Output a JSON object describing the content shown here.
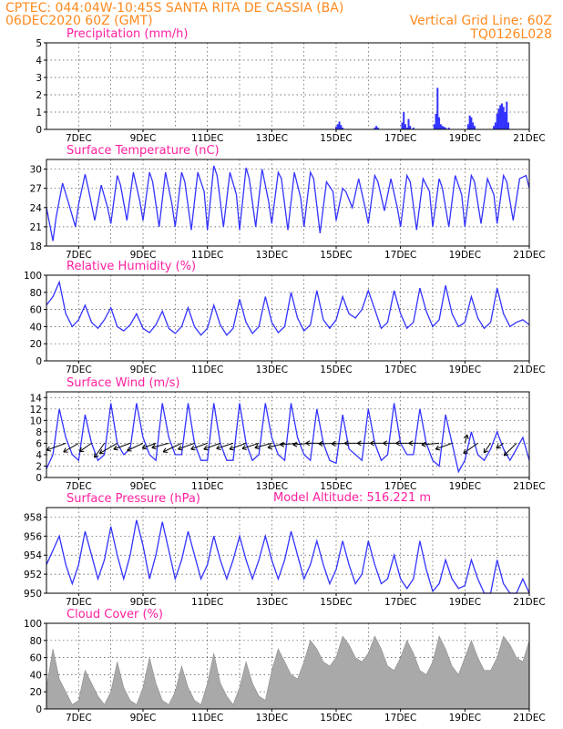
{
  "header": {
    "line1_left": "CPTEC:  044:04W-10:45S  SANTA RITA DE CASSIA (BA)",
    "line2_left": "06DEC2020 60Z (GMT)",
    "line2_right": "Vertical Grid Line: 60Z",
    "line3_right": "TQ0126L028",
    "model_altitude": "Model Altitude: 516.221 m"
  },
  "x_ticks": [
    "7DEC",
    "9DEC",
    "11DEC",
    "13DEC",
    "15DEC",
    "17DEC",
    "19DEC",
    "21DEC"
  ],
  "colors": {
    "line": "#3333ff",
    "bars": "#3333ff",
    "cloud": "#a9a9a9",
    "header": "#ff8a1f",
    "title": "#ff1fa0"
  },
  "chart_data": [
    {
      "type": "bar",
      "title": "Precipitation (mm/h)",
      "x_unit": "days since 06DEC 06Z",
      "ylim": [
        0,
        5
      ],
      "yticks": [
        0,
        1,
        2,
        3,
        4,
        5
      ],
      "grid": true,
      "x": [
        9.0,
        9.05,
        9.1,
        9.15,
        9.2,
        10.2,
        10.25,
        10.3,
        11.05,
        11.1,
        11.15,
        11.2,
        11.25,
        11.3,
        11.4,
        12.05,
        12.1,
        12.15,
        12.2,
        12.25,
        12.3,
        12.35,
        12.4,
        12.5,
        13.1,
        13.15,
        13.2,
        13.25,
        13.3,
        13.9,
        13.95,
        14.0,
        14.05,
        14.1,
        14.15,
        14.2,
        14.25,
        14.3,
        14.35
      ],
      "values": [
        0.15,
        0.3,
        0.45,
        0.25,
        0.1,
        0.1,
        0.2,
        0.1,
        0.4,
        1.0,
        0.3,
        0.1,
        0.6,
        0.2,
        0.1,
        0.3,
        0.9,
        2.4,
        0.7,
        0.3,
        0.2,
        0.15,
        0.1,
        0.1,
        0.3,
        0.8,
        0.7,
        0.4,
        0.2,
        0.2,
        0.4,
        0.9,
        1.2,
        1.4,
        1.5,
        1.3,
        1.0,
        1.6,
        0.4
      ]
    },
    {
      "type": "line",
      "title": "Surface Temperature (nC)",
      "x_unit": "days since 06DEC 06Z",
      "ylim": [
        18,
        31.5
      ],
      "yticks": [
        18,
        21,
        24,
        27,
        30
      ],
      "grid": true,
      "x": [
        0.0,
        0.2,
        0.3,
        0.5,
        0.7,
        0.9,
        1.0,
        1.2,
        1.3,
        1.5,
        1.7,
        1.9,
        2.0,
        2.2,
        2.3,
        2.5,
        2.7,
        2.9,
        3.0,
        3.2,
        3.3,
        3.5,
        3.7,
        3.9,
        4.0,
        4.2,
        4.3,
        4.5,
        4.7,
        4.9,
        5.0,
        5.2,
        5.3,
        5.5,
        5.7,
        5.9,
        6.0,
        6.2,
        6.3,
        6.5,
        6.7,
        6.9,
        7.0,
        7.2,
        7.3,
        7.5,
        7.7,
        7.9,
        8.0,
        8.2,
        8.3,
        8.5,
        8.7,
        8.9,
        9.0,
        9.2,
        9.3,
        9.5,
        9.7,
        9.9,
        10.0,
        10.2,
        10.3,
        10.5,
        10.7,
        10.9,
        11.0,
        11.2,
        11.3,
        11.5,
        11.7,
        11.9,
        12.0,
        12.2,
        12.3,
        12.5,
        12.7,
        12.9,
        13.0,
        13.2,
        13.3,
        13.5,
        13.7,
        13.9,
        14.0,
        14.2,
        14.3,
        14.5,
        14.7,
        14.9,
        15.0
      ],
      "values": [
        24.0,
        18.8,
        22.5,
        27.8,
        24.5,
        21.0,
        24.5,
        29.2,
        27.0,
        22.0,
        27.5,
        24.0,
        21.5,
        29.0,
        27.5,
        22.0,
        29.5,
        25.0,
        22.0,
        29.5,
        28.0,
        21.0,
        29.5,
        24.5,
        21.0,
        29.5,
        28.0,
        20.5,
        29.5,
        26.5,
        20.5,
        30.5,
        29.0,
        21.0,
        29.5,
        26.0,
        20.5,
        30.2,
        28.5,
        21.0,
        30.0,
        25.0,
        21.5,
        29.5,
        28.5,
        20.5,
        29.5,
        25.5,
        21.0,
        29.5,
        28.5,
        20.0,
        28.0,
        26.5,
        22.0,
        27.0,
        26.5,
        24.0,
        28.5,
        24.0,
        21.5,
        29.0,
        28.0,
        23.5,
        28.5,
        24.0,
        21.0,
        29.0,
        28.0,
        20.5,
        28.5,
        26.5,
        21.0,
        28.5,
        27.0,
        21.0,
        29.0,
        26.0,
        21.0,
        29.0,
        28.0,
        21.5,
        28.5,
        26.0,
        21.5,
        29.0,
        28.0,
        22.0,
        28.5,
        29.0,
        27.0
      ]
    },
    {
      "type": "line",
      "title": "Relative Humidity (%)",
      "x_unit": "days since 06DEC 06Z",
      "ylim": [
        0,
        100
      ],
      "yticks": [
        0,
        20,
        40,
        60,
        80,
        100
      ],
      "grid": true,
      "x": [
        0.0,
        0.2,
        0.4,
        0.6,
        0.8,
        1.0,
        1.2,
        1.4,
        1.6,
        1.8,
        2.0,
        2.2,
        2.4,
        2.6,
        2.8,
        3.0,
        3.2,
        3.4,
        3.6,
        3.8,
        4.0,
        4.2,
        4.4,
        4.6,
        4.8,
        5.0,
        5.2,
        5.4,
        5.6,
        5.8,
        6.0,
        6.2,
        6.4,
        6.6,
        6.8,
        7.0,
        7.2,
        7.4,
        7.6,
        7.8,
        8.0,
        8.2,
        8.4,
        8.6,
        8.8,
        9.0,
        9.2,
        9.4,
        9.6,
        9.8,
        10.0,
        10.2,
        10.4,
        10.6,
        10.8,
        11.0,
        11.2,
        11.4,
        11.6,
        11.8,
        12.0,
        12.2,
        12.4,
        12.6,
        12.8,
        13.0,
        13.2,
        13.4,
        13.6,
        13.8,
        14.0,
        14.2,
        14.4,
        14.6,
        14.8,
        15.0
      ],
      "values": [
        65,
        75,
        92,
        55,
        40,
        48,
        65,
        45,
        38,
        48,
        62,
        40,
        35,
        42,
        55,
        38,
        33,
        42,
        58,
        38,
        32,
        40,
        62,
        40,
        30,
        38,
        65,
        42,
        30,
        38,
        72,
        45,
        32,
        40,
        75,
        45,
        33,
        40,
        80,
        50,
        35,
        42,
        82,
        48,
        38,
        48,
        75,
        55,
        50,
        60,
        82,
        60,
        38,
        45,
        82,
        55,
        38,
        45,
        85,
        58,
        40,
        48,
        88,
        55,
        40,
        45,
        75,
        50,
        38,
        45,
        85,
        55,
        40,
        45,
        48,
        42
      ]
    },
    {
      "type": "line",
      "title": "Surface Wind (m/s)",
      "x_unit": "days since 06DEC 06Z",
      "ylim": [
        0,
        15
      ],
      "yticks": [
        0,
        2,
        4,
        6,
        8,
        10,
        12,
        14
      ],
      "grid": true,
      "x": [
        0.0,
        0.2,
        0.4,
        0.6,
        0.8,
        1.0,
        1.2,
        1.4,
        1.6,
        1.8,
        2.0,
        2.2,
        2.4,
        2.6,
        2.8,
        3.0,
        3.2,
        3.4,
        3.6,
        3.8,
        4.0,
        4.2,
        4.4,
        4.6,
        4.8,
        5.0,
        5.2,
        5.4,
        5.6,
        5.8,
        6.0,
        6.2,
        6.4,
        6.6,
        6.8,
        7.0,
        7.2,
        7.4,
        7.6,
        7.8,
        8.0,
        8.2,
        8.4,
        8.6,
        8.8,
        9.0,
        9.2,
        9.4,
        9.6,
        9.8,
        10.0,
        10.2,
        10.4,
        10.6,
        10.8,
        11.0,
        11.2,
        11.4,
        11.6,
        11.8,
        12.0,
        12.2,
        12.4,
        12.6,
        12.8,
        13.0,
        13.2,
        13.4,
        13.6,
        13.8,
        14.0,
        14.2,
        14.4,
        14.6,
        14.8,
        15.0
      ],
      "values": [
        1.5,
        4,
        12,
        7,
        4,
        3,
        11,
        6,
        3,
        4,
        13,
        6,
        4,
        5,
        13,
        7,
        4,
        3,
        13,
        7,
        4,
        4,
        13,
        6,
        3,
        3,
        13,
        6,
        3,
        3,
        13,
        6,
        3,
        4,
        13,
        7,
        4,
        3,
        13,
        7,
        4,
        3,
        12,
        6,
        3,
        2.5,
        11,
        5,
        4,
        3,
        12,
        6,
        3,
        4,
        13,
        6,
        4,
        4,
        12,
        6,
        3,
        2,
        11,
        6,
        1,
        3,
        8,
        4,
        3,
        5,
        8,
        5,
        3,
        5,
        7,
        3
      ],
      "vector_x": [
        0.6,
        1.0,
        1.4,
        1.8,
        2.2,
        2.6,
        3.0,
        3.4,
        3.8,
        4.2,
        4.6,
        5.0,
        5.4,
        5.8,
        6.2,
        6.6,
        7.0,
        7.4,
        7.8,
        8.2,
        8.6,
        9.0,
        9.4,
        9.8,
        10.2,
        10.6,
        11.0,
        11.4,
        11.8,
        12.2,
        12.6,
        13.0,
        13.4,
        13.8,
        14.2,
        14.6
      ],
      "vector_dir_deg": [
        200,
        210,
        215,
        235,
        210,
        200,
        205,
        200,
        195,
        205,
        200,
        200,
        200,
        198,
        200,
        198,
        195,
        195,
        185,
        185,
        180,
        182,
        182,
        180,
        180,
        180,
        180,
        180,
        180,
        185,
        200,
        75,
        215,
        235,
        215,
        225
      ],
      "vector_speed": [
        7,
        6,
        5,
        6,
        7,
        6,
        6,
        5,
        6,
        7,
        6,
        6,
        6,
        6,
        6,
        6,
        6,
        6,
        6,
        6,
        6,
        6,
        6,
        6,
        6,
        6,
        6,
        6,
        6,
        6,
        6,
        3,
        6,
        4,
        3,
        6
      ]
    },
    {
      "type": "line",
      "title": "Surface Pressure (hPa)",
      "x_unit": "days since 06DEC 06Z",
      "ylim": [
        950,
        959
      ],
      "yticks": [
        950,
        952,
        954,
        956,
        958
      ],
      "grid": true,
      "x": [
        0.0,
        0.2,
        0.4,
        0.6,
        0.8,
        1.0,
        1.2,
        1.4,
        1.6,
        1.8,
        2.0,
        2.2,
        2.4,
        2.6,
        2.8,
        3.0,
        3.2,
        3.4,
        3.6,
        3.8,
        4.0,
        4.2,
        4.4,
        4.6,
        4.8,
        5.0,
        5.2,
        5.4,
        5.6,
        5.8,
        6.0,
        6.2,
        6.4,
        6.6,
        6.8,
        7.0,
        7.2,
        7.4,
        7.6,
        7.8,
        8.0,
        8.2,
        8.4,
        8.6,
        8.8,
        9.0,
        9.2,
        9.4,
        9.6,
        9.8,
        10.0,
        10.2,
        10.4,
        10.6,
        10.8,
        11.0,
        11.2,
        11.4,
        11.6,
        11.8,
        12.0,
        12.2,
        12.4,
        12.6,
        12.8,
        13.0,
        13.2,
        13.4,
        13.6,
        13.8,
        14.0,
        14.2,
        14.4,
        14.6,
        14.8,
        15.0
      ],
      "values": [
        953,
        954.5,
        956,
        953,
        951,
        953,
        956.5,
        954,
        951.5,
        953.5,
        957,
        954,
        951.5,
        954,
        957.7,
        955,
        951.5,
        954,
        957.5,
        954.5,
        951.5,
        953.5,
        956.5,
        954,
        951.5,
        953,
        956,
        953.5,
        951.5,
        953.5,
        956,
        953.5,
        951.5,
        953.5,
        956,
        953.5,
        951.5,
        953.5,
        956.5,
        954,
        951.5,
        953,
        955.5,
        953,
        951,
        952.5,
        955.5,
        953,
        951,
        952,
        955.5,
        953,
        951,
        951.5,
        954,
        951.5,
        950.5,
        951.5,
        955.5,
        952.5,
        950.2,
        951,
        953.5,
        951.5,
        950.5,
        950.8,
        953.5,
        951.5,
        950,
        950,
        953.5,
        951,
        950,
        950,
        951.5,
        950
      ]
    },
    {
      "type": "area",
      "title": "Cloud Cover (%)",
      "x_unit": "days since 06DEC 06Z",
      "ylim": [
        0,
        100
      ],
      "yticks": [
        0,
        20,
        40,
        60,
        80,
        100
      ],
      "grid": true,
      "x": [
        0.0,
        0.2,
        0.4,
        0.6,
        0.8,
        1.0,
        1.2,
        1.4,
        1.6,
        1.8,
        2.0,
        2.2,
        2.4,
        2.6,
        2.8,
        3.0,
        3.2,
        3.4,
        3.6,
        3.8,
        4.0,
        4.2,
        4.4,
        4.6,
        4.8,
        5.0,
        5.2,
        5.4,
        5.6,
        5.8,
        6.0,
        6.2,
        6.4,
        6.6,
        6.8,
        7.0,
        7.2,
        7.4,
        7.6,
        7.8,
        8.0,
        8.2,
        8.4,
        8.6,
        8.8,
        9.0,
        9.2,
        9.4,
        9.6,
        9.8,
        10.0,
        10.2,
        10.4,
        10.6,
        10.8,
        11.0,
        11.2,
        11.4,
        11.6,
        11.8,
        12.0,
        12.2,
        12.4,
        12.6,
        12.8,
        13.0,
        13.2,
        13.4,
        13.6,
        13.8,
        14.0,
        14.2,
        14.4,
        14.6,
        14.8,
        15.0
      ],
      "values": [
        25,
        70,
        35,
        20,
        5,
        10,
        45,
        30,
        15,
        5,
        20,
        55,
        25,
        10,
        5,
        25,
        60,
        30,
        10,
        5,
        20,
        50,
        25,
        10,
        5,
        30,
        65,
        30,
        15,
        5,
        25,
        55,
        30,
        15,
        10,
        45,
        70,
        55,
        40,
        35,
        55,
        80,
        70,
        55,
        50,
        60,
        85,
        75,
        60,
        55,
        65,
        85,
        70,
        50,
        45,
        60,
        80,
        65,
        45,
        40,
        55,
        85,
        70,
        50,
        40,
        60,
        80,
        60,
        45,
        45,
        60,
        85,
        75,
        60,
        55,
        80
      ]
    }
  ]
}
